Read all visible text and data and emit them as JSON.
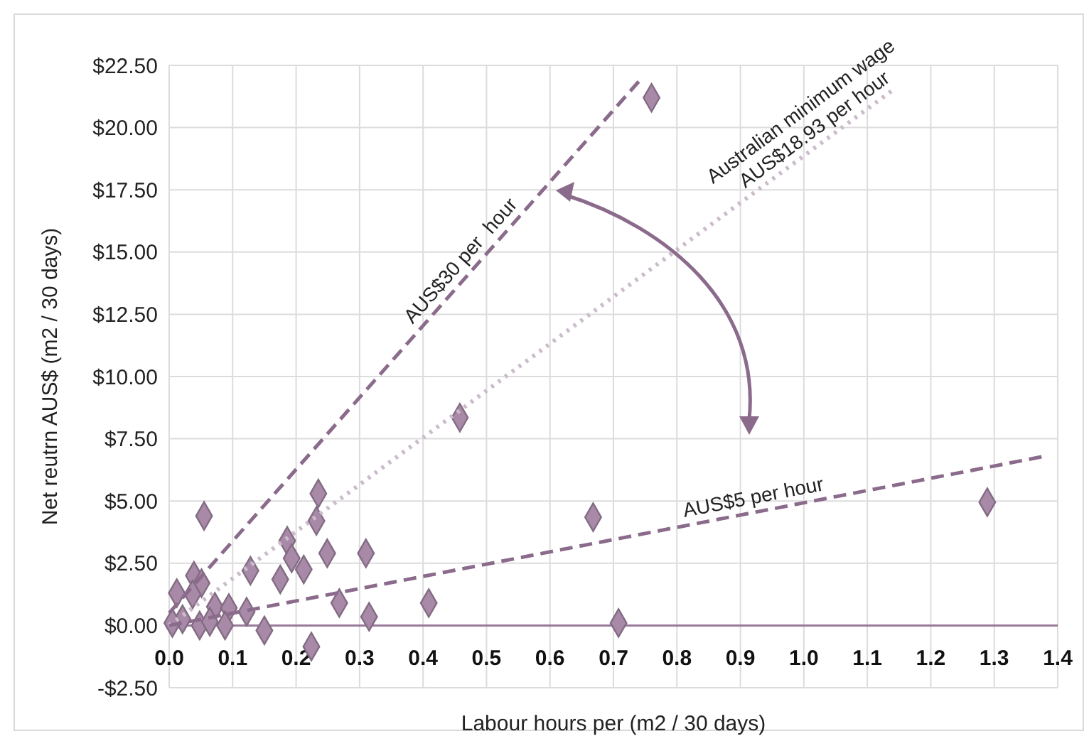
{
  "chart_data": {
    "type": "scatter",
    "xlabel": "Labour hours per (m2 / 30 days)",
    "ylabel": "Net reutrn AUS$ (m2 / 30 days)",
    "xlim": [
      0,
      1.4
    ],
    "xticks": [
      {
        "value": 0,
        "label": "0.0"
      },
      {
        "value": 0.1,
        "label": "0.1"
      },
      {
        "value": 0.2,
        "label": "0.2"
      },
      {
        "value": 0.3,
        "label": "0.3"
      },
      {
        "value": 0.4,
        "label": "0.4"
      },
      {
        "value": 0.5,
        "label": "0.5"
      },
      {
        "value": 0.6,
        "label": "0.6"
      },
      {
        "value": 0.7,
        "label": "0.7"
      },
      {
        "value": 0.8,
        "label": "0.8"
      },
      {
        "value": 0.9,
        "label": "0.9"
      },
      {
        "value": 1,
        "label": "1.0"
      },
      {
        "value": 1.1,
        "label": "1.1"
      },
      {
        "value": 1.2,
        "label": "1.2"
      },
      {
        "value": 1.3,
        "label": "1.3"
      },
      {
        "value": 1.4,
        "label": "1.4"
      }
    ],
    "ylim": [
      -2.5,
      22.5
    ],
    "yticks": [
      {
        "value": -2.5,
        "label": "-$2.50"
      },
      {
        "value": 0,
        "label": "$0.00"
      },
      {
        "value": 2.5,
        "label": "$2.50"
      },
      {
        "value": 5,
        "label": "$5.00"
      },
      {
        "value": 7.5,
        "label": "$7.50"
      },
      {
        "value": 10,
        "label": "$10.00"
      },
      {
        "value": 12.5,
        "label": "$12.50"
      },
      {
        "value": 15,
        "label": "$15.00"
      },
      {
        "value": 17.5,
        "label": "$17.50"
      },
      {
        "value": 20,
        "label": "$20.00"
      },
      {
        "value": 22.5,
        "label": "$22.50"
      }
    ],
    "grid": true,
    "ref_lines": [
      {
        "axis": "y",
        "value": 0,
        "color": "#9a7a9a"
      }
    ],
    "series": [
      {
        "marker": "diamond",
        "color": "#a88aa8",
        "x": [
          0.235,
          0.055,
          0.232,
          0.186,
          0.193,
          0.249,
          0.31,
          0.212,
          0.128,
          0.175,
          0.039,
          0.051,
          0.012,
          0.037,
          0.268,
          0.072,
          0.094,
          0.122,
          0.021,
          0.005,
          0.048,
          0.064,
          0.088,
          0.315,
          0.15,
          0.224,
          0.458,
          0.668,
          0.409,
          0.708,
          1.289,
          0.76
        ],
        "values": [
          5.3,
          4.4,
          4.2,
          3.4,
          2.7,
          2.9,
          2.9,
          2.25,
          2.2,
          1.85,
          2.0,
          1.7,
          1.3,
          1.25,
          0.9,
          0.75,
          0.7,
          0.55,
          0.25,
          0.1,
          0,
          0.15,
          0,
          0.35,
          -0.2,
          -0.85,
          8.35,
          4.35,
          0.9,
          0.1,
          4.95,
          21.2
        ]
      },
      {
        "type": "line",
        "name": "AUS$30 per  hour",
        "line_style": "dashed",
        "color": "#8b6b8b",
        "x": [
          0,
          0.745
        ],
        "values": [
          0.5,
          22
        ]
      },
      {
        "type": "line",
        "name": "Australian minimum wage\nAUS$18.93 per hour",
        "line_style": "dotted",
        "color": "#cbbccb",
        "x": [
          0,
          1.145
        ],
        "values": [
          0,
          21.6
        ]
      },
      {
        "type": "line",
        "name": "AUS$5 per hour",
        "line_style": "dashed",
        "color": "#8b6b8b",
        "x": [
          0,
          1.38
        ],
        "values": [
          0,
          6.8
        ]
      }
    ]
  }
}
